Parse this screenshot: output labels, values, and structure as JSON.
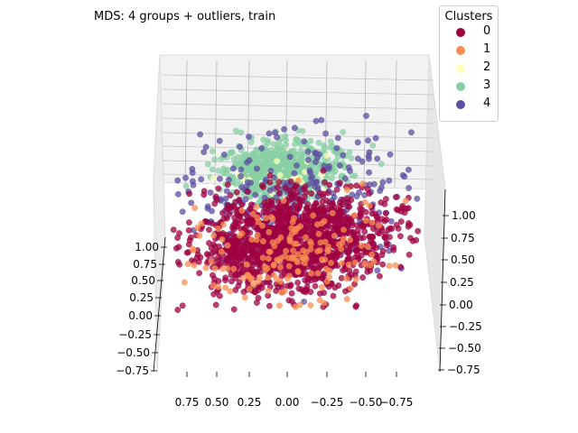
{
  "chart_data": {
    "type": "scatter",
    "projection": "3d",
    "title": "MDS: 4 groups + outliers, train",
    "legend": {
      "title": "Clusters",
      "position": "top-right"
    },
    "series": [
      {
        "name": "0",
        "color": "#9e0142",
        "approx_points": 2600,
        "center": [
          0.0,
          0.0,
          0.0
        ],
        "spread": 0.55
      },
      {
        "name": "1",
        "color": "#f98e52",
        "approx_points": 180,
        "center": [
          0.05,
          0.0,
          -0.1
        ],
        "spread": 0.6
      },
      {
        "name": "2",
        "color": "#ffffbe",
        "approx_points": 30,
        "center": [
          0.1,
          0.3,
          0.55
        ],
        "spread": 0.3
      },
      {
        "name": "3",
        "color": "#88d0a4",
        "approx_points": 700,
        "center": [
          0.1,
          0.6,
          0.5
        ],
        "spread": 0.35
      },
      {
        "name": "4",
        "color": "#5e4fa2",
        "approx_points": 300,
        "center": [
          0.0,
          0.3,
          0.3
        ],
        "spread": 0.75
      }
    ],
    "axes": {
      "x": {
        "ticks": [
          "0.75",
          "0.50",
          "0.25",
          "0.00",
          "−0.25",
          "−0.50",
          "−0.75"
        ],
        "range": [
          -0.9,
          0.9
        ]
      },
      "y": {
        "ticks": [
          "1.00",
          "0.75",
          "0.50",
          "0.25",
          "0.00",
          "−0.25",
          "−0.50",
          "−0.75"
        ],
        "range": [
          -0.8,
          1.1
        ]
      },
      "z": {
        "ticks": [
          "1.00",
          "0.75",
          "0.50",
          "0.25",
          "0.00",
          "−0.25",
          "−0.50",
          "−0.75"
        ],
        "range": [
          -0.8,
          1.1
        ]
      }
    },
    "grid": true
  }
}
